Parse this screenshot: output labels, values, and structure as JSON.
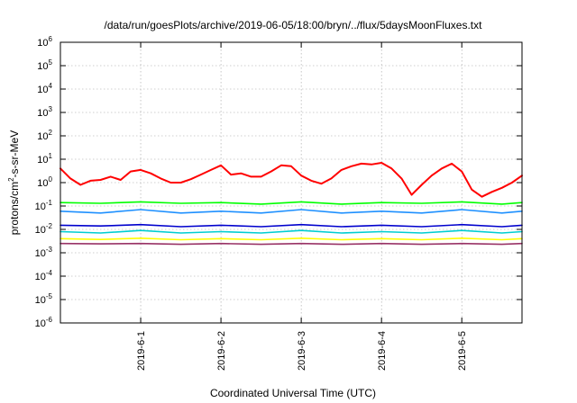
{
  "chart_data": {
    "type": "line",
    "title": "/data/run/goesPlots/archive/2019-06-05/18:00/bryn/../flux/5daysMoonFluxes.txt",
    "xlabel": "Coordinated Universal Time (UTC)",
    "ylabel_base": "protons/cm",
    "ylabel_sup": "2",
    "ylabel_rest": "-s-sr-MeV",
    "y_scale": "log",
    "ylim": [
      1e-06,
      1000000.0
    ],
    "xlim": [
      "2019-05-31T00:00",
      "2019-06-05T18:00"
    ],
    "grid": true,
    "y_ticks": [
      {
        "value": 1e-06,
        "base": "10",
        "exp": "-6"
      },
      {
        "value": 1e-05,
        "base": "10",
        "exp": "-5"
      },
      {
        "value": 0.0001,
        "base": "10",
        "exp": "-4"
      },
      {
        "value": 0.001,
        "base": "10",
        "exp": "-3"
      },
      {
        "value": 0.01,
        "base": "10",
        "exp": "-2"
      },
      {
        "value": 0.1,
        "base": "10",
        "exp": "-1"
      },
      {
        "value": 1.0,
        "base": "10",
        "exp": "0"
      },
      {
        "value": 10.0,
        "base": "10",
        "exp": "1"
      },
      {
        "value": 100.0,
        "base": "10",
        "exp": "2"
      },
      {
        "value": 1000.0,
        "base": "10",
        "exp": "3"
      },
      {
        "value": 10000.0,
        "base": "10",
        "exp": "4"
      },
      {
        "value": 100000.0,
        "base": "10",
        "exp": "5"
      },
      {
        "value": 1000000.0,
        "base": "10",
        "exp": "6"
      }
    ],
    "x_ticks": [
      {
        "value": "2019-06-01T00:00",
        "label": "2019-6-1"
      },
      {
        "value": "2019-06-02T00:00",
        "label": "2019-6-2"
      },
      {
        "value": "2019-06-03T00:00",
        "label": "2019-6-3"
      },
      {
        "value": "2019-06-04T00:00",
        "label": "2019-6-4"
      },
      {
        "value": "2019-06-05T00:00",
        "label": "2019-6-5"
      }
    ],
    "series": [
      {
        "color": "#ff0000",
        "x": [
          "2019-05-31T00:00",
          "2019-05-31T03:00",
          "2019-05-31T06:00",
          "2019-05-31T09:00",
          "2019-05-31T12:00",
          "2019-05-31T15:00",
          "2019-05-31T18:00",
          "2019-05-31T21:00",
          "2019-06-01T00:00",
          "2019-06-01T03:00",
          "2019-06-01T06:00",
          "2019-06-01T09:00",
          "2019-06-01T12:00",
          "2019-06-01T15:00",
          "2019-06-01T18:00",
          "2019-06-01T21:00",
          "2019-06-02T00:00",
          "2019-06-02T03:00",
          "2019-06-02T06:00",
          "2019-06-02T09:00",
          "2019-06-02T12:00",
          "2019-06-02T15:00",
          "2019-06-02T18:00",
          "2019-06-02T21:00",
          "2019-06-03T00:00",
          "2019-06-03T03:00",
          "2019-06-03T06:00",
          "2019-06-03T09:00",
          "2019-06-03T12:00",
          "2019-06-03T15:00",
          "2019-06-03T18:00",
          "2019-06-03T21:00",
          "2019-06-04T00:00",
          "2019-06-04T03:00",
          "2019-06-04T06:00",
          "2019-06-04T09:00",
          "2019-06-04T12:00",
          "2019-06-04T15:00",
          "2019-06-04T18:00",
          "2019-06-04T21:00",
          "2019-06-05T00:00",
          "2019-06-05T03:00",
          "2019-06-05T06:00",
          "2019-06-05T09:00",
          "2019-06-05T12:00",
          "2019-06-05T15:00",
          "2019-06-05T18:00"
        ],
        "y": [
          4.0,
          1.5,
          0.8,
          1.2,
          1.3,
          1.8,
          1.3,
          3.0,
          3.5,
          2.5,
          1.5,
          1.0,
          1.0,
          1.4,
          2.2,
          3.5,
          5.5,
          2.2,
          2.5,
          1.8,
          1.8,
          3.0,
          5.5,
          5.0,
          2.0,
          1.2,
          0.9,
          1.5,
          3.5,
          5.0,
          6.5,
          6.0,
          7.0,
          4.0,
          1.5,
          0.3,
          0.8,
          2.0,
          4.0,
          6.5,
          3.0,
          0.5,
          0.25,
          0.4,
          0.6,
          1.0,
          2.0
        ]
      },
      {
        "color": "#00ff00",
        "x": [
          "2019-05-31T00:00",
          "2019-05-31T12:00",
          "2019-06-01T00:00",
          "2019-06-01T12:00",
          "2019-06-02T00:00",
          "2019-06-02T12:00",
          "2019-06-03T00:00",
          "2019-06-03T12:00",
          "2019-06-04T00:00",
          "2019-06-04T12:00",
          "2019-06-05T00:00",
          "2019-06-05T12:00",
          "2019-06-05T18:00"
        ],
        "y": [
          0.14,
          0.13,
          0.15,
          0.13,
          0.14,
          0.12,
          0.15,
          0.12,
          0.14,
          0.13,
          0.15,
          0.12,
          0.14
        ]
      },
      {
        "color": "#1e90ff",
        "x": [
          "2019-05-31T00:00",
          "2019-05-31T12:00",
          "2019-06-01T00:00",
          "2019-06-01T12:00",
          "2019-06-02T00:00",
          "2019-06-02T12:00",
          "2019-06-03T00:00",
          "2019-06-03T12:00",
          "2019-06-04T00:00",
          "2019-06-04T12:00",
          "2019-06-05T00:00",
          "2019-06-05T12:00",
          "2019-06-05T18:00"
        ],
        "y": [
          0.06,
          0.05,
          0.07,
          0.05,
          0.06,
          0.05,
          0.07,
          0.05,
          0.06,
          0.05,
          0.07,
          0.05,
          0.06
        ]
      },
      {
        "color": "#0000cd",
        "x": [
          "2019-05-31T00:00",
          "2019-05-31T12:00",
          "2019-06-01T00:00",
          "2019-06-01T12:00",
          "2019-06-02T00:00",
          "2019-06-02T12:00",
          "2019-06-03T00:00",
          "2019-06-03T12:00",
          "2019-06-04T00:00",
          "2019-06-04T12:00",
          "2019-06-05T00:00",
          "2019-06-05T12:00",
          "2019-06-05T18:00"
        ],
        "y": [
          0.015,
          0.014,
          0.016,
          0.013,
          0.015,
          0.013,
          0.016,
          0.013,
          0.015,
          0.013,
          0.016,
          0.013,
          0.015
        ]
      },
      {
        "color": "#00ced1",
        "x": [
          "2019-05-31T00:00",
          "2019-05-31T12:00",
          "2019-06-01T00:00",
          "2019-06-01T12:00",
          "2019-06-02T00:00",
          "2019-06-02T12:00",
          "2019-06-03T00:00",
          "2019-06-03T12:00",
          "2019-06-04T00:00",
          "2019-06-04T12:00",
          "2019-06-05T00:00",
          "2019-06-05T12:00",
          "2019-06-05T18:00"
        ],
        "y": [
          0.008,
          0.007,
          0.009,
          0.007,
          0.008,
          0.007,
          0.009,
          0.007,
          0.008,
          0.007,
          0.009,
          0.007,
          0.008
        ]
      },
      {
        "color": "#ffff00",
        "x": [
          "2019-05-31T00:00",
          "2019-05-31T12:00",
          "2019-06-01T00:00",
          "2019-06-01T12:00",
          "2019-06-02T00:00",
          "2019-06-02T12:00",
          "2019-06-03T00:00",
          "2019-06-03T12:00",
          "2019-06-04T00:00",
          "2019-06-04T12:00",
          "2019-06-05T00:00",
          "2019-06-05T12:00",
          "2019-06-05T18:00"
        ],
        "y": [
          0.004,
          0.0037,
          0.0042,
          0.0036,
          0.004,
          0.0036,
          0.0042,
          0.0036,
          0.004,
          0.0036,
          0.0042,
          0.0036,
          0.004
        ]
      },
      {
        "color": "#993366",
        "x": [
          "2019-05-31T00:00",
          "2019-05-31T12:00",
          "2019-06-01T00:00",
          "2019-06-01T12:00",
          "2019-06-02T00:00",
          "2019-06-02T12:00",
          "2019-06-03T00:00",
          "2019-06-03T12:00",
          "2019-06-04T00:00",
          "2019-06-04T12:00",
          "2019-06-05T00:00",
          "2019-06-05T12:00",
          "2019-06-05T18:00"
        ],
        "y": [
          0.0025,
          0.0024,
          0.0025,
          0.0023,
          0.0025,
          0.0023,
          0.0025,
          0.0023,
          0.0025,
          0.0023,
          0.0025,
          0.0023,
          0.0025
        ]
      }
    ]
  }
}
